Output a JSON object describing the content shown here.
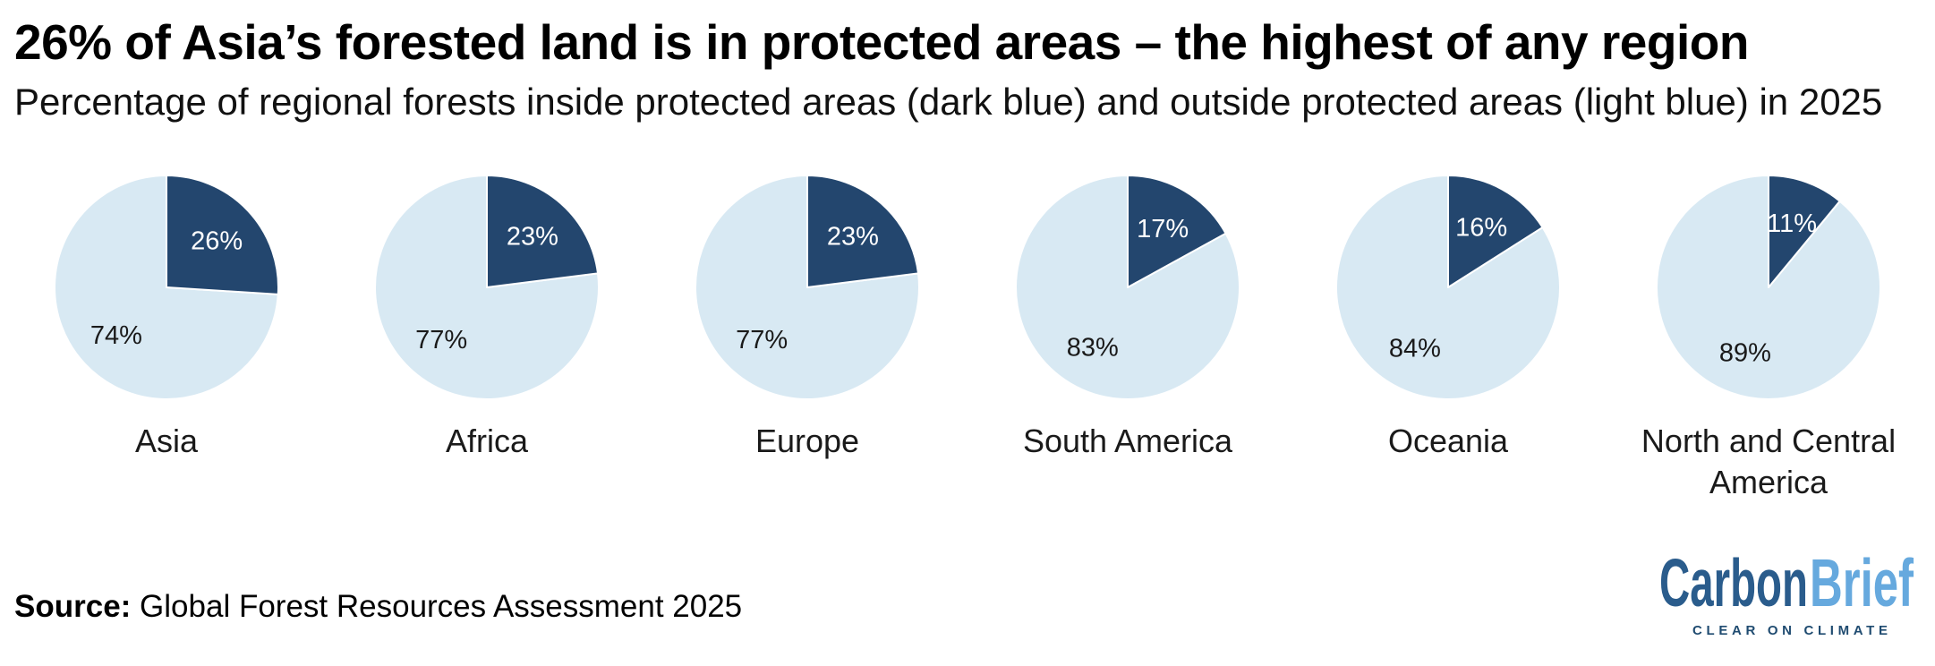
{
  "chart_data": {
    "type": "pie",
    "title": "26% of Asia’s forested land is in protected areas – the highest of any region",
    "subtitle": "Percentage of regional forests inside protected areas (dark blue) and outside protected areas (light blue) in 2025",
    "value_suffix": "%",
    "slice_colors": {
      "inside_protected": "#23466E",
      "outside_protected": "#D8E9F3"
    },
    "slice_label_colors": {
      "inside_protected": "#FFFFFF",
      "outside_protected": "#1A1A1A"
    },
    "layout": {
      "start_angle": "12-oclock",
      "direction": "clockwise",
      "legend": "none",
      "labels": "inside-slices"
    },
    "regions": [
      {
        "name": "Asia",
        "inside_pct": 26,
        "outside_pct": 74
      },
      {
        "name": "Africa",
        "inside_pct": 23,
        "outside_pct": 77
      },
      {
        "name": "Europe",
        "inside_pct": 23,
        "outside_pct": 77
      },
      {
        "name": "South America",
        "inside_pct": 17,
        "outside_pct": 83
      },
      {
        "name": "Oceania",
        "inside_pct": 16,
        "outside_pct": 84
      },
      {
        "name": "North and Central America",
        "inside_pct": 11,
        "outside_pct": 89
      }
    ]
  },
  "footer": {
    "source_label": "Source:",
    "source_text": "Global Forest Resources Assessment 2025",
    "logo": {
      "word_part1": "Carbon",
      "word_part2": "Brief",
      "tagline": "CLEAR ON CLIMATE",
      "color_part1": "#2A5C8C",
      "color_part2": "#66A9DE",
      "tagline_color": "#1F4B70"
    }
  }
}
